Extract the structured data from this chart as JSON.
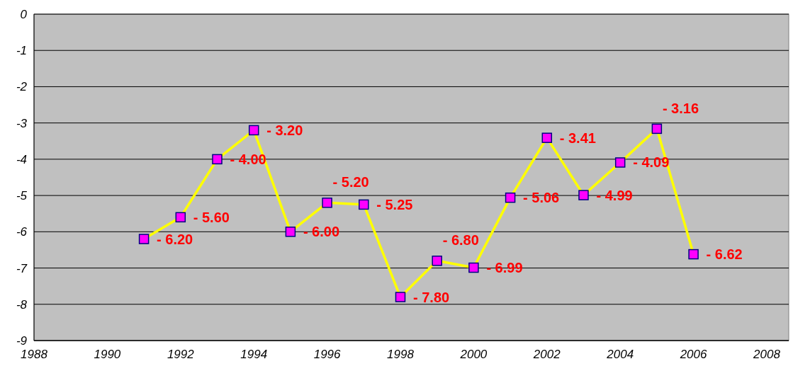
{
  "chart_data": {
    "type": "line",
    "x": [
      1991,
      1992,
      1993,
      1994,
      1995,
      1996,
      1997,
      1998,
      1999,
      2000,
      2001,
      2002,
      2003,
      2004,
      2005,
      2006
    ],
    "series": [
      {
        "color": "#ffff00",
        "values": [
          -6.2,
          -5.6,
          -4.0,
          -3.2,
          -6.0,
          -5.2,
          -5.25,
          -7.8,
          -6.8,
          -6.99,
          -5.06,
          -3.41,
          -4.99,
          -4.09,
          -3.16,
          -6.62
        ],
        "value_labels": [
          "- 6.20",
          "- 5.60",
          "- 4.00",
          "- 3.20",
          "- 6.00",
          "- 5.20",
          "- 5.25",
          "- 7.80",
          "- 6.80",
          "- 6.99",
          "- 5.06",
          "- 3.41",
          "- 4.99",
          "- 4.09",
          "- 3.16",
          "- 6.62"
        ]
      }
    ],
    "xlim": [
      1988,
      2008.6
    ],
    "xticks": [
      1988,
      1990,
      1992,
      1994,
      1996,
      1998,
      2000,
      2002,
      2004,
      2006,
      2008
    ],
    "ylim": [
      -9,
      0
    ],
    "yticks": [
      0,
      -1,
      -2,
      -3,
      -4,
      -5,
      -6,
      -7,
      -8,
      -9
    ],
    "grid": "y",
    "marker": "square",
    "line_style": "solid"
  }
}
